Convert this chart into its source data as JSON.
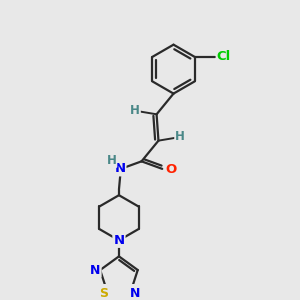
{
  "background_color": "#e8e8e8",
  "bond_color": "#2a2a2a",
  "atom_colors": {
    "Cl": "#00cc00",
    "O": "#ff2200",
    "N": "#0000ee",
    "S": "#ccaa00",
    "H": "#4a8888",
    "C": "#2a2a2a"
  },
  "figsize": [
    3.0,
    3.0
  ],
  "dpi": 100,
  "bond_lw": 1.6
}
